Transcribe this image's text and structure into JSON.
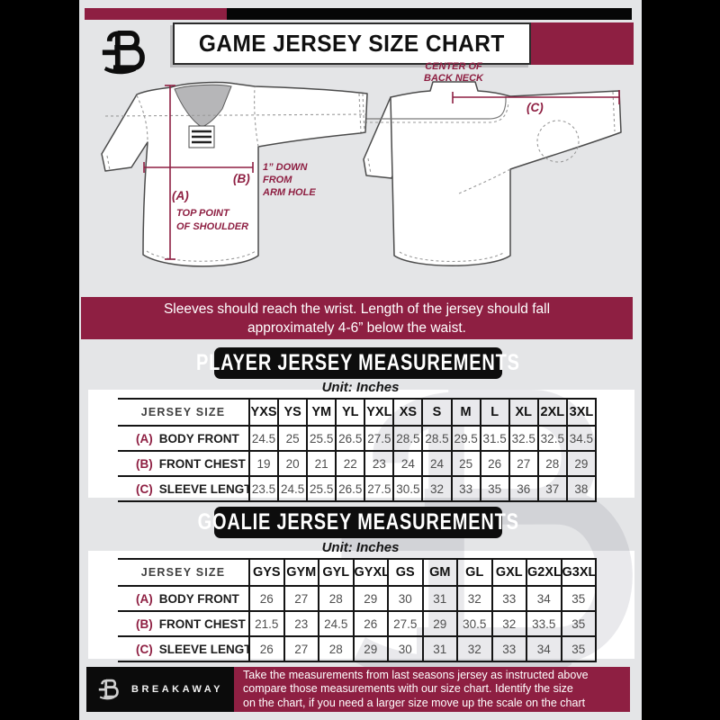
{
  "colors": {
    "accent_maroon": "#8e1f42",
    "background_gray": "#e4e5e7",
    "ink_black": "#0d0d0d"
  },
  "header": {
    "title": "GAME JERSEY SIZE CHART"
  },
  "diagram": {
    "back_neck_line1": "CENTER OF",
    "back_neck_line2": "BACK NECK",
    "marker_a": "(A)",
    "marker_b": "(B)",
    "marker_c": "(C)",
    "note_a_line1": "TOP POINT",
    "note_a_line2": "OF SHOULDER",
    "note_b_line1": "1” DOWN",
    "note_b_line2": "FROM",
    "note_b_line3": "ARM HOLE"
  },
  "banner": {
    "line1": "Sleeves should reach the wrist. Length of the jersey should fall",
    "line2": "approximately 4-6” below the waist."
  },
  "player": {
    "title": "PLAYER JERSEY MEASUREMENTS",
    "unit": "Unit: Inches",
    "table": {
      "header_label": "JERSEY SIZE",
      "sizes": [
        "YXS",
        "YS",
        "YM",
        "YL",
        "YXL",
        "XS",
        "S",
        "M",
        "L",
        "XL",
        "2XL",
        "3XL"
      ],
      "rows": [
        {
          "marker": "(A)",
          "label": "BODY FRONT",
          "values": [
            "24.5",
            "25",
            "25.5",
            "26.5",
            "27.5",
            "28.5",
            "28.5",
            "29.5",
            "31.5",
            "32.5",
            "32.5",
            "34.5"
          ]
        },
        {
          "marker": "(B)",
          "label": "FRONT CHEST",
          "values": [
            "19",
            "20",
            "21",
            "22",
            "23",
            "24",
            "24",
            "25",
            "26",
            "27",
            "28",
            "29"
          ]
        },
        {
          "marker": "(C)",
          "label": "SLEEVE LENGTH",
          "values": [
            "23.5",
            "24.5",
            "25.5",
            "26.5",
            "27.5",
            "30.5",
            "32",
            "33",
            "35",
            "36",
            "37",
            "38"
          ]
        }
      ]
    }
  },
  "goalie": {
    "title": "GOALIE JERSEY MEASUREMENTS",
    "unit": "Unit: Inches",
    "table": {
      "header_label": "JERSEY SIZE",
      "sizes": [
        "GYS",
        "GYM",
        "GYL",
        "GYXL",
        "GS",
        "GM",
        "GL",
        "GXL",
        "G2XL",
        "G3XL"
      ],
      "rows": [
        {
          "marker": "(A)",
          "label": "BODY FRONT",
          "values": [
            "26",
            "27",
            "28",
            "29",
            "30",
            "31",
            "32",
            "33",
            "34",
            "35"
          ]
        },
        {
          "marker": "(B)",
          "label": "FRONT CHEST",
          "values": [
            "21.5",
            "23",
            "24.5",
            "26",
            "27.5",
            "29",
            "30.5",
            "32",
            "33.5",
            "35"
          ]
        },
        {
          "marker": "(C)",
          "label": "SLEEVE LENGTH",
          "values": [
            "26",
            "27",
            "28",
            "29",
            "30",
            "31",
            "32",
            "33",
            "34",
            "35"
          ]
        }
      ]
    }
  },
  "footer": {
    "brand": "BREAKAWAY",
    "line1": "Take the measurements from last seasons jersey as instructed above",
    "line2": "compare those measurements  with our size chart. Identify the size",
    "line3": "on the chart, if you need a larger size move up the scale on the chart"
  }
}
